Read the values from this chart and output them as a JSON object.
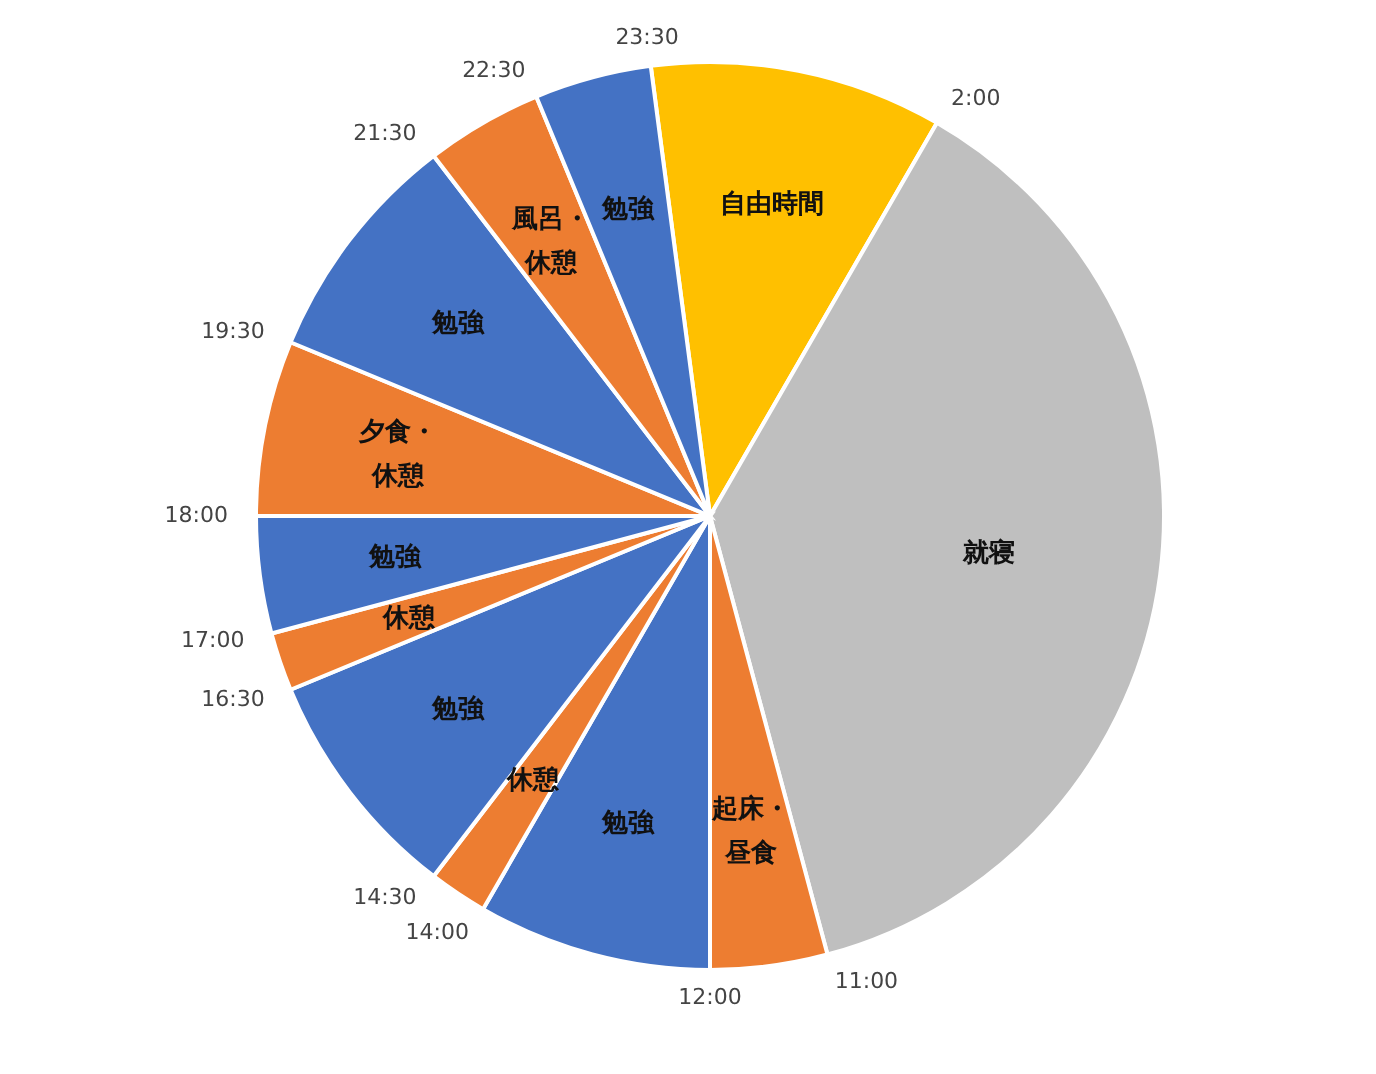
{
  "chart_data": {
    "type": "pie",
    "categories": [
      "自由時間",
      "就寝",
      "起床・昼食",
      "勉強",
      "休憩",
      "勉強",
      "休憩",
      "勉強",
      "夕食・休憩",
      "勉強",
      "風呂・休憩",
      "勉強"
    ],
    "values": [
      10.4167,
      37.5,
      4.1667,
      8.3333,
      2.0833,
      8.3333,
      2.0833,
      4.1667,
      6.25,
      8.3333,
      4.1667,
      4.1667
    ],
    "colors": [
      "#ffc000",
      "#bfbfbf",
      "#ed7d31",
      "#4472c4",
      "#ed7d31",
      "#4472c4",
      "#ed7d31",
      "#4472c4",
      "#ed7d31",
      "#4472c4",
      "#ed7d31",
      "#4472c4"
    ],
    "annotations": [
      "23:30",
      "2:00",
      "11:00",
      "12:00",
      "14:00",
      "14:30",
      "16:30",
      "17:00",
      "18:00",
      "19:30",
      "21:30",
      "22:30"
    ]
  }
}
